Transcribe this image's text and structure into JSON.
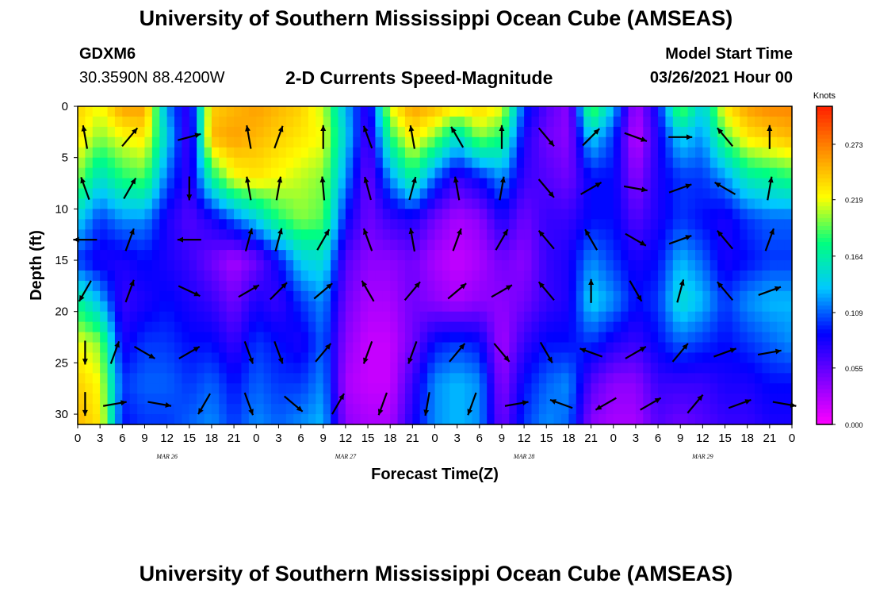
{
  "header": {
    "title": "University of Southern Mississippi Ocean Cube (AMSEAS)",
    "station": "GDXM6",
    "coords": "30.3590N  88.4200W",
    "plot_title": "2-D Currents Speed-Magnitude",
    "start_label": "Model Start Time",
    "start_value": "03/26/2021 Hour 00"
  },
  "footer": {
    "title": "University of Southern Mississippi Ocean Cube (AMSEAS)"
  },
  "chart_data": {
    "type": "heatmap",
    "title": "2-D Currents Speed-Magnitude",
    "xlabel": "Forecast Time(Z)",
    "ylabel": "Depth (ft)",
    "x_ticks": [
      "0",
      "3",
      "6",
      "9",
      "12",
      "15",
      "18",
      "21",
      "0",
      "3",
      "6",
      "9",
      "12",
      "15",
      "18",
      "21",
      "0",
      "3",
      "6",
      "9",
      "12",
      "15",
      "18",
      "21",
      "0",
      "3",
      "6",
      "9",
      "12",
      "15",
      "18",
      "21",
      "0"
    ],
    "x_range_hours": [
      0,
      96
    ],
    "day_labels": [
      {
        "hour": 12,
        "label": "MAR 26"
      },
      {
        "hour": 36,
        "label": "MAR 27"
      },
      {
        "hour": 60,
        "label": "MAR 28"
      },
      {
        "hour": 84,
        "label": "MAR 29"
      }
    ],
    "y_ticks": [
      0,
      5,
      10,
      15,
      20,
      25,
      30
    ],
    "y_range_ft": [
      0,
      31
    ],
    "y_inverted": true,
    "colorbar": {
      "unit": "Knots",
      "ticks": [
        0.0,
        0.055,
        0.109,
        0.164,
        0.219,
        0.273
      ],
      "tick_labels": [
        "0.000",
        "0.055",
        "0.109",
        "0.164",
        "0.219",
        "0.273"
      ],
      "range": [
        0,
        0.31
      ],
      "colors": [
        "#ff00ff",
        "#8000ff",
        "#0000ff",
        "#00c8ff",
        "#00ff80",
        "#ffff00",
        "#ff9000",
        "#ff2000"
      ]
    },
    "value_columns": [
      {
        "hour": 0,
        "speeds": [
          0.24,
          0.23,
          0.2,
          0.14,
          0.1,
          0.17,
          0.22,
          0.24,
          0.25
        ]
      },
      {
        "hour": 3,
        "speeds": [
          0.22,
          0.2,
          0.15,
          0.1,
          0.08,
          0.13,
          0.2,
          0.22,
          0.23
        ]
      },
      {
        "hour": 6,
        "speeds": [
          0.26,
          0.22,
          0.18,
          0.12,
          0.08,
          0.07,
          0.08,
          0.1,
          0.09
        ]
      },
      {
        "hour": 9,
        "speeds": [
          0.26,
          0.23,
          0.19,
          0.12,
          0.09,
          0.08,
          0.1,
          0.11,
          0.1
        ]
      },
      {
        "hour": 12,
        "speeds": [
          0.12,
          0.14,
          0.11,
          0.08,
          0.08,
          0.09,
          0.1,
          0.11,
          0.1
        ]
      },
      {
        "hour": 15,
        "speeds": [
          0.07,
          0.06,
          0.07,
          0.06,
          0.07,
          0.08,
          0.09,
          0.1,
          0.11
        ]
      },
      {
        "hour": 18,
        "speeds": [
          0.24,
          0.25,
          0.17,
          0.08,
          0.05,
          0.07,
          0.09,
          0.11,
          0.12
        ]
      },
      {
        "hour": 21,
        "speeds": [
          0.25,
          0.26,
          0.22,
          0.11,
          0.03,
          0.05,
          0.07,
          0.09,
          0.1
        ]
      },
      {
        "hour": 24,
        "speeds": [
          0.26,
          0.25,
          0.23,
          0.14,
          0.05,
          0.08,
          0.1,
          0.11,
          0.12
        ]
      },
      {
        "hour": 27,
        "speeds": [
          0.25,
          0.24,
          0.22,
          0.18,
          0.09,
          0.07,
          0.09,
          0.1,
          0.11
        ]
      },
      {
        "hour": 30,
        "speeds": [
          0.24,
          0.23,
          0.21,
          0.2,
          0.14,
          0.1,
          0.08,
          0.1,
          0.12
        ]
      },
      {
        "hour": 33,
        "speeds": [
          0.21,
          0.22,
          0.2,
          0.19,
          0.15,
          0.12,
          0.11,
          0.12,
          0.13
        ]
      },
      {
        "hour": 36,
        "speeds": [
          0.13,
          0.14,
          0.12,
          0.09,
          0.06,
          0.05,
          0.04,
          0.03,
          0.04
        ]
      },
      {
        "hour": 39,
        "speeds": [
          0.07,
          0.06,
          0.05,
          0.05,
          0.04,
          0.03,
          0.02,
          0.02,
          0.03
        ]
      },
      {
        "hour": 42,
        "speeds": [
          0.22,
          0.18,
          0.12,
          0.07,
          0.04,
          0.03,
          0.02,
          0.02,
          0.03
        ]
      },
      {
        "hour": 45,
        "speeds": [
          0.26,
          0.23,
          0.17,
          0.08,
          0.05,
          0.05,
          0.05,
          0.07,
          0.08
        ]
      },
      {
        "hour": 48,
        "speeds": [
          0.25,
          0.2,
          0.11,
          0.05,
          0.03,
          0.04,
          0.09,
          0.12,
          0.12
        ]
      },
      {
        "hour": 51,
        "speeds": [
          0.23,
          0.15,
          0.07,
          0.03,
          0.02,
          0.03,
          0.1,
          0.13,
          0.13
        ]
      },
      {
        "hour": 54,
        "speeds": [
          0.24,
          0.2,
          0.09,
          0.04,
          0.03,
          0.04,
          0.09,
          0.12,
          0.12
        ]
      },
      {
        "hour": 57,
        "speeds": [
          0.22,
          0.18,
          0.12,
          0.08,
          0.05,
          0.04,
          0.03,
          0.04,
          0.05
        ]
      },
      {
        "hour": 60,
        "speeds": [
          0.1,
          0.08,
          0.07,
          0.05,
          0.04,
          0.05,
          0.07,
          0.09,
          0.1
        ]
      },
      {
        "hour": 63,
        "speeds": [
          0.06,
          0.05,
          0.06,
          0.07,
          0.07,
          0.07,
          0.09,
          0.11,
          0.12
        ]
      },
      {
        "hour": 66,
        "speeds": [
          0.04,
          0.04,
          0.05,
          0.07,
          0.08,
          0.08,
          0.09,
          0.12,
          0.11
        ]
      },
      {
        "hour": 69,
        "speeds": [
          0.2,
          0.14,
          0.09,
          0.09,
          0.12,
          0.14,
          0.1,
          0.06,
          0.04
        ]
      },
      {
        "hour": 72,
        "speeds": [
          0.13,
          0.1,
          0.09,
          0.09,
          0.1,
          0.12,
          0.08,
          0.04,
          0.03
        ]
      },
      {
        "hour": 75,
        "speeds": [
          0.03,
          0.02,
          0.04,
          0.06,
          0.08,
          0.09,
          0.07,
          0.04,
          0.03
        ]
      },
      {
        "hour": 78,
        "speeds": [
          0.09,
          0.08,
          0.08,
          0.08,
          0.09,
          0.1,
          0.09,
          0.07,
          0.06
        ]
      },
      {
        "hour": 81,
        "speeds": [
          0.2,
          0.14,
          0.1,
          0.1,
          0.13,
          0.15,
          0.11,
          0.07,
          0.05
        ]
      },
      {
        "hour": 84,
        "speeds": [
          0.14,
          0.12,
          0.1,
          0.09,
          0.11,
          0.13,
          0.1,
          0.07,
          0.06
        ]
      },
      {
        "hour": 87,
        "speeds": [
          0.23,
          0.19,
          0.12,
          0.08,
          0.08,
          0.1,
          0.09,
          0.08,
          0.07
        ]
      },
      {
        "hour": 90,
        "speeds": [
          0.26,
          0.23,
          0.16,
          0.1,
          0.09,
          0.12,
          0.1,
          0.08,
          0.07
        ]
      },
      {
        "hour": 93,
        "speeds": [
          0.27,
          0.24,
          0.17,
          0.11,
          0.1,
          0.13,
          0.11,
          0.09,
          0.08
        ]
      },
      {
        "hour": 96,
        "speeds": [
          0.27,
          0.25,
          0.18,
          0.11,
          0.1,
          0.13,
          0.12,
          0.09,
          0.08
        ]
      }
    ],
    "value_depths_ft": [
      0,
      3,
      7,
      11,
      15,
      19,
      23,
      27,
      31
    ],
    "arrows": [
      {
        "hour": 1,
        "depth": 3,
        "dir": 350
      },
      {
        "hour": 7,
        "depth": 3,
        "dir": 40
      },
      {
        "hour": 15,
        "depth": 3,
        "dir": 75
      },
      {
        "hour": 23,
        "depth": 3,
        "dir": 350
      },
      {
        "hour": 27,
        "depth": 3,
        "dir": 20
      },
      {
        "hour": 33,
        "depth": 3,
        "dir": 0
      },
      {
        "hour": 39,
        "depth": 3,
        "dir": 340
      },
      {
        "hour": 45,
        "depth": 3,
        "dir": 350
      },
      {
        "hour": 51,
        "depth": 3,
        "dir": 330
      },
      {
        "hour": 57,
        "depth": 3,
        "dir": 0
      },
      {
        "hour": 63,
        "depth": 3,
        "dir": 140
      },
      {
        "hour": 69,
        "depth": 3,
        "dir": 45
      },
      {
        "hour": 75,
        "depth": 3,
        "dir": 110
      },
      {
        "hour": 81,
        "depth": 3,
        "dir": 90
      },
      {
        "hour": 87,
        "depth": 3,
        "dir": 320
      },
      {
        "hour": 93,
        "depth": 3,
        "dir": 0
      },
      {
        "hour": 1,
        "depth": 8,
        "dir": 340
      },
      {
        "hour": 7,
        "depth": 8,
        "dir": 30
      },
      {
        "hour": 15,
        "depth": 8,
        "dir": 180
      },
      {
        "hour": 23,
        "depth": 8,
        "dir": 350
      },
      {
        "hour": 27,
        "depth": 8,
        "dir": 10
      },
      {
        "hour": 33,
        "depth": 8,
        "dir": 355
      },
      {
        "hour": 39,
        "depth": 8,
        "dir": 345
      },
      {
        "hour": 45,
        "depth": 8,
        "dir": 15
      },
      {
        "hour": 51,
        "depth": 8,
        "dir": 350
      },
      {
        "hour": 57,
        "depth": 8,
        "dir": 10
      },
      {
        "hour": 63,
        "depth": 8,
        "dir": 140
      },
      {
        "hour": 69,
        "depth": 8,
        "dir": 60
      },
      {
        "hour": 75,
        "depth": 8,
        "dir": 100
      },
      {
        "hour": 81,
        "depth": 8,
        "dir": 70
      },
      {
        "hour": 87,
        "depth": 8,
        "dir": 300
      },
      {
        "hour": 93,
        "depth": 8,
        "dir": 10
      },
      {
        "hour": 1,
        "depth": 13,
        "dir": 270
      },
      {
        "hour": 7,
        "depth": 13,
        "dir": 20
      },
      {
        "hour": 15,
        "depth": 13,
        "dir": 270
      },
      {
        "hour": 23,
        "depth": 13,
        "dir": 15
      },
      {
        "hour": 27,
        "depth": 13,
        "dir": 15
      },
      {
        "hour": 33,
        "depth": 13,
        "dir": 30
      },
      {
        "hour": 39,
        "depth": 13,
        "dir": 340
      },
      {
        "hour": 45,
        "depth": 13,
        "dir": 350
      },
      {
        "hour": 51,
        "depth": 13,
        "dir": 20
      },
      {
        "hour": 57,
        "depth": 13,
        "dir": 30
      },
      {
        "hour": 63,
        "depth": 13,
        "dir": 320
      },
      {
        "hour": 69,
        "depth": 13,
        "dir": 330
      },
      {
        "hour": 75,
        "depth": 13,
        "dir": 120
      },
      {
        "hour": 81,
        "depth": 13,
        "dir": 70
      },
      {
        "hour": 87,
        "depth": 13,
        "dir": 320
      },
      {
        "hour": 93,
        "depth": 13,
        "dir": 20
      },
      {
        "hour": 1,
        "depth": 18,
        "dir": 210
      },
      {
        "hour": 7,
        "depth": 18,
        "dir": 20
      },
      {
        "hour": 15,
        "depth": 18,
        "dir": 115
      },
      {
        "hour": 23,
        "depth": 18,
        "dir": 60
      },
      {
        "hour": 27,
        "depth": 18,
        "dir": 45
      },
      {
        "hour": 33,
        "depth": 18,
        "dir": 50
      },
      {
        "hour": 39,
        "depth": 18,
        "dir": 330
      },
      {
        "hour": 45,
        "depth": 18,
        "dir": 40
      },
      {
        "hour": 51,
        "depth": 18,
        "dir": 50
      },
      {
        "hour": 57,
        "depth": 18,
        "dir": 60
      },
      {
        "hour": 63,
        "depth": 18,
        "dir": 320
      },
      {
        "hour": 69,
        "depth": 18,
        "dir": 0
      },
      {
        "hour": 75,
        "depth": 18,
        "dir": 150
      },
      {
        "hour": 81,
        "depth": 18,
        "dir": 15
      },
      {
        "hour": 87,
        "depth": 18,
        "dir": 320
      },
      {
        "hour": 93,
        "depth": 18,
        "dir": 70
      },
      {
        "hour": 1,
        "depth": 24,
        "dir": 180
      },
      {
        "hour": 5,
        "depth": 24,
        "dir": 20
      },
      {
        "hour": 9,
        "depth": 24,
        "dir": 120
      },
      {
        "hour": 15,
        "depth": 24,
        "dir": 60
      },
      {
        "hour": 23,
        "depth": 24,
        "dir": 160
      },
      {
        "hour": 27,
        "depth": 24,
        "dir": 160
      },
      {
        "hour": 33,
        "depth": 24,
        "dir": 40
      },
      {
        "hour": 39,
        "depth": 24,
        "dir": 200
      },
      {
        "hour": 45,
        "depth": 24,
        "dir": 200
      },
      {
        "hour": 51,
        "depth": 24,
        "dir": 40
      },
      {
        "hour": 57,
        "depth": 24,
        "dir": 140
      },
      {
        "hour": 63,
        "depth": 24,
        "dir": 150
      },
      {
        "hour": 69,
        "depth": 24,
        "dir": 290
      },
      {
        "hour": 75,
        "depth": 24,
        "dir": 60
      },
      {
        "hour": 81,
        "depth": 24,
        "dir": 40
      },
      {
        "hour": 87,
        "depth": 24,
        "dir": 70
      },
      {
        "hour": 93,
        "depth": 24,
        "dir": 80
      },
      {
        "hour": 1,
        "depth": 29,
        "dir": 180
      },
      {
        "hour": 5,
        "depth": 29,
        "dir": 80
      },
      {
        "hour": 11,
        "depth": 29,
        "dir": 100
      },
      {
        "hour": 17,
        "depth": 29,
        "dir": 210
      },
      {
        "hour": 23,
        "depth": 29,
        "dir": 160
      },
      {
        "hour": 29,
        "depth": 29,
        "dir": 130
      },
      {
        "hour": 35,
        "depth": 29,
        "dir": 30
      },
      {
        "hour": 41,
        "depth": 29,
        "dir": 200
      },
      {
        "hour": 47,
        "depth": 29,
        "dir": 190
      },
      {
        "hour": 53,
        "depth": 29,
        "dir": 200
      },
      {
        "hour": 59,
        "depth": 29,
        "dir": 80
      },
      {
        "hour": 65,
        "depth": 29,
        "dir": 290
      },
      {
        "hour": 71,
        "depth": 29,
        "dir": 240
      },
      {
        "hour": 77,
        "depth": 29,
        "dir": 60
      },
      {
        "hour": 83,
        "depth": 29,
        "dir": 40
      },
      {
        "hour": 89,
        "depth": 29,
        "dir": 70
      },
      {
        "hour": 95,
        "depth": 29,
        "dir": 100
      }
    ]
  }
}
